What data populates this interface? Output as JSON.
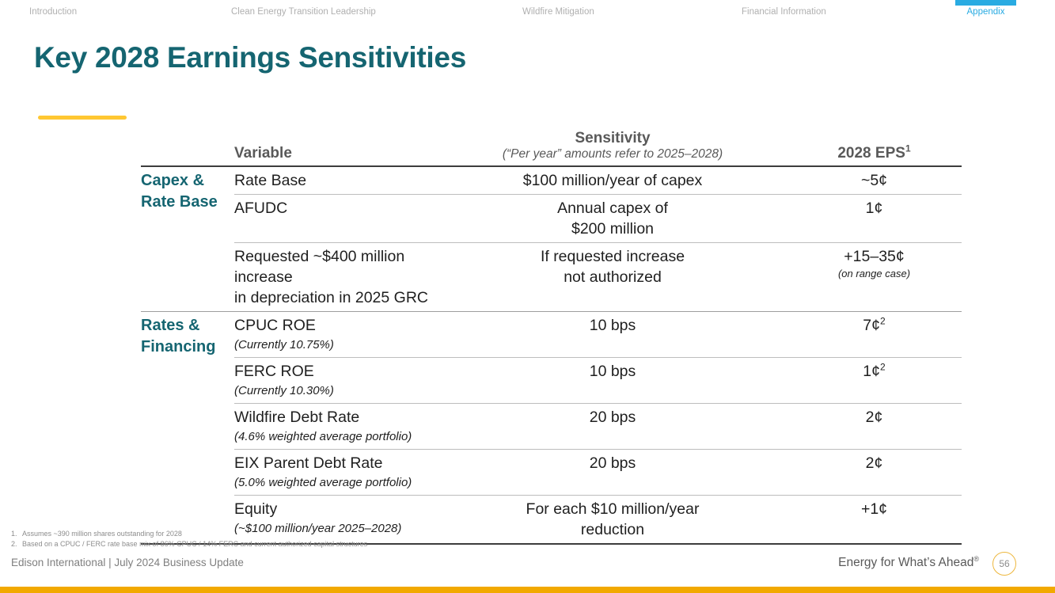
{
  "nav": {
    "items": [
      {
        "label": "Introduction",
        "active": false
      },
      {
        "label": "Clean Energy Transition Leadership",
        "active": false
      },
      {
        "label": "Wildfire Mitigation",
        "active": false
      },
      {
        "label": "Financial Information",
        "active": false
      },
      {
        "label": "Appendix",
        "active": true
      }
    ]
  },
  "slide": {
    "title": "Key 2028 Earnings Sensitivities"
  },
  "table": {
    "header": {
      "variable": "Variable",
      "sensitivity": "Sensitivity",
      "sensitivity_note": "(“Per year” amounts refer to 2025–2028)",
      "eps": "2028 EPS",
      "eps_sup": "1"
    },
    "groups": [
      {
        "line1": "Capex &",
        "line2": "Rate Base"
      },
      {
        "line1": "Rates &",
        "line2": "Financing"
      }
    ],
    "rows": [
      {
        "variable": "Rate Base",
        "variable2": "",
        "variable_sub": "",
        "sensitivity1": "$100 million/year of capex",
        "sensitivity2": "",
        "eps": "~5¢",
        "eps_sup": "",
        "eps_note": ""
      },
      {
        "variable": "AFUDC",
        "variable2": "",
        "variable_sub": "",
        "sensitivity1": "Annual capex of",
        "sensitivity2": "$200 million",
        "eps": "1¢",
        "eps_sup": "",
        "eps_note": ""
      },
      {
        "variable": "Requested ~$400 million increase",
        "variable2": "in depreciation in 2025 GRC",
        "variable_sub": "",
        "sensitivity1": "If requested increase",
        "sensitivity2": "not authorized",
        "eps": "+15–35¢",
        "eps_sup": "",
        "eps_note": "(on range case)"
      },
      {
        "variable": "CPUC ROE",
        "variable2": "",
        "variable_sub": "(Currently 10.75%)",
        "sensitivity1": "10 bps",
        "sensitivity2": "",
        "eps": "7¢",
        "eps_sup": "2",
        "eps_note": ""
      },
      {
        "variable": "FERC ROE",
        "variable2": "",
        "variable_sub": "(Currently 10.30%)",
        "sensitivity1": "10 bps",
        "sensitivity2": "",
        "eps": "1¢",
        "eps_sup": "2",
        "eps_note": ""
      },
      {
        "variable": "Wildfire Debt Rate",
        "variable2": "",
        "variable_sub": "(4.6% weighted average portfolio)",
        "sensitivity1": "20 bps",
        "sensitivity2": "",
        "eps": "2¢",
        "eps_sup": "",
        "eps_note": ""
      },
      {
        "variable": "EIX Parent Debt Rate",
        "variable2": "",
        "variable_sub": "(5.0% weighted average portfolio)",
        "sensitivity1": "20 bps",
        "sensitivity2": "",
        "eps": "2¢",
        "eps_sup": "",
        "eps_note": ""
      },
      {
        "variable": "Equity",
        "variable2": "",
        "variable_sub": "(~$100 million/year 2025–2028)",
        "sensitivity1": "For each $10 million/year",
        "sensitivity2": "reduction",
        "eps": "+1¢",
        "eps_sup": "",
        "eps_note": ""
      }
    ]
  },
  "footnotes": [
    {
      "number": "1.",
      "text": "Assumes ~390 million shares outstanding for 2028"
    },
    {
      "number": "2.",
      "text": "Based on a CPUC / FERC rate base mix of 86% CPUC / 14% FERC and current authorized capital structures"
    }
  ],
  "footer": {
    "left": "Edison International | July 2024 Business Update",
    "tagline": "Energy for What’s Ahead",
    "tagline_mark": "®",
    "page": "56"
  },
  "colors": {
    "teal": "#156571",
    "cyan_accent": "#29ABE2",
    "gold_bar": "#F2A900",
    "gold_underline": "#FFC732"
  }
}
